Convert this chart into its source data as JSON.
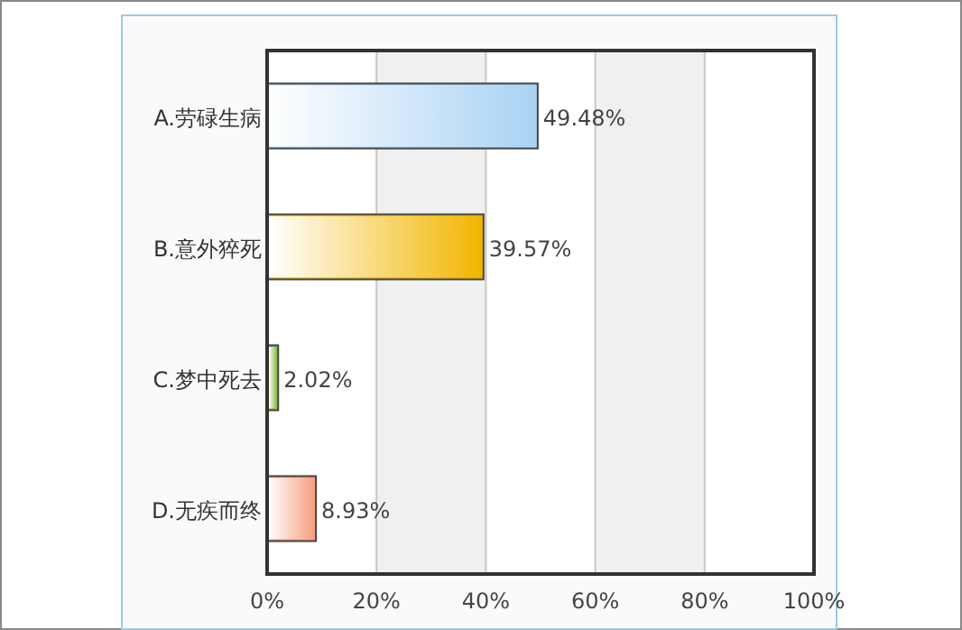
{
  "chart_data": {
    "type": "bar",
    "orientation": "horizontal",
    "categories": [
      "A.劳碌生病",
      "B.意外猝死",
      "C.梦中死去",
      "D.无疾而终"
    ],
    "values": [
      49.48,
      39.57,
      2.02,
      8.93
    ],
    "colors": [
      "#a9d3f5",
      "#f2b600",
      "#8fba4c",
      "#f5a07e"
    ],
    "value_labels": [
      "49.48%",
      "39.57%",
      "2.02%",
      "8.93%"
    ],
    "xlim": [
      0,
      100
    ],
    "xticks": [
      {
        "value": 0,
        "label": "0%"
      },
      {
        "value": 20,
        "label": "20%"
      },
      {
        "value": 40,
        "label": "40%"
      },
      {
        "value": 60,
        "label": "60%"
      },
      {
        "value": 80,
        "label": "80%"
      },
      {
        "value": 100,
        "label": "100%"
      }
    ],
    "grid": "x"
  }
}
